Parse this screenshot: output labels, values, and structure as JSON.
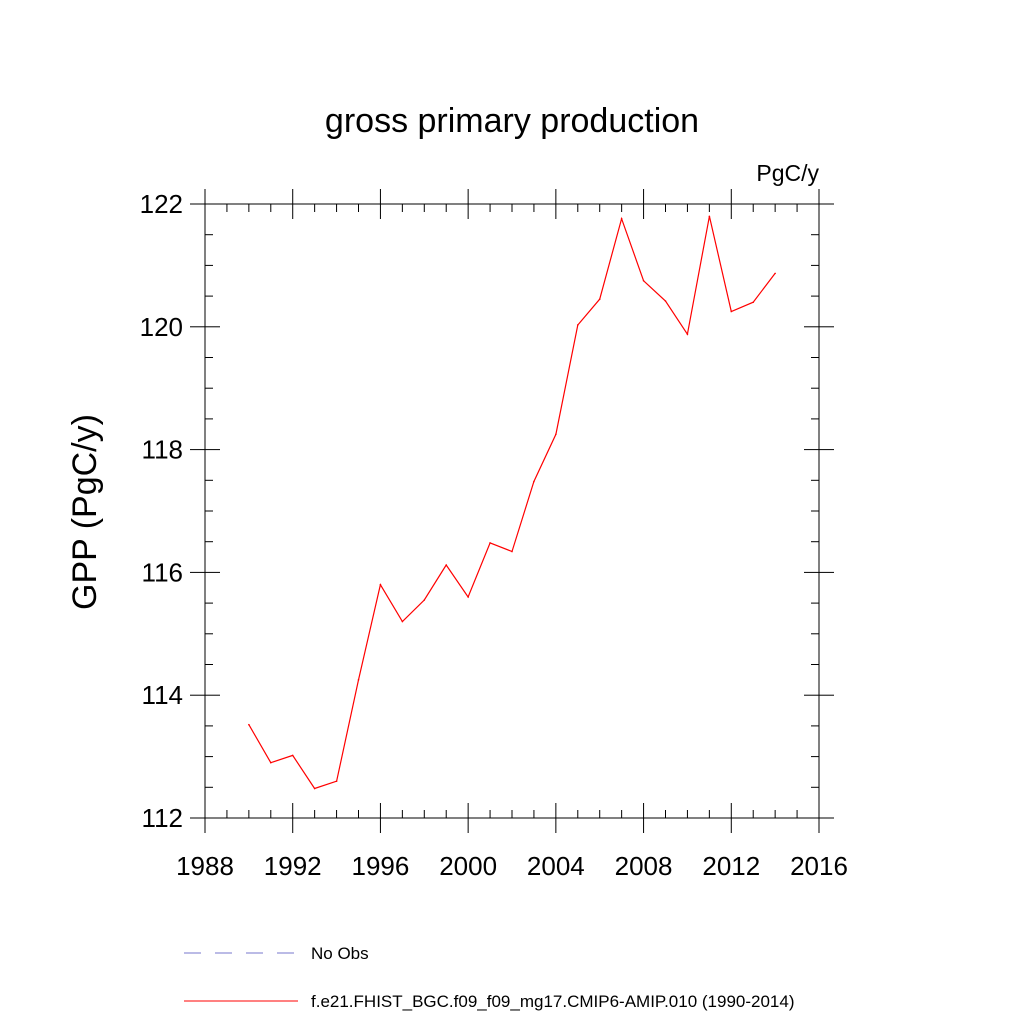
{
  "chart_data": {
    "type": "line",
    "title": "gross primary production",
    "units_label": "PgC/y",
    "xlabel": "",
    "ylabel": "GPP  (PgC/y)",
    "xlim": [
      1988,
      2016
    ],
    "ylim": [
      112,
      122
    ],
    "x_ticks": [
      1988,
      1992,
      1996,
      2000,
      2004,
      2008,
      2012,
      2016
    ],
    "y_ticks": [
      112,
      114,
      116,
      118,
      120,
      122
    ],
    "x_minor_step": 1,
    "y_minor_step": 0.5,
    "series": [
      {
        "name": "f.e21.FHIST_BGC.f09_f09_mg17.CMIP6-AMIP.010 (1990-2014)",
        "color": "#ff0000",
        "dash": "solid",
        "x": [
          1990,
          1991,
          1992,
          1993,
          1994,
          1995,
          1996,
          1997,
          1998,
          1999,
          2000,
          2001,
          2002,
          2003,
          2004,
          2005,
          2006,
          2007,
          2008,
          2009,
          2010,
          2011,
          2012,
          2013,
          2014
        ],
        "values": [
          113.52,
          112.9,
          113.02,
          112.48,
          112.6,
          114.25,
          115.8,
          115.2,
          115.55,
          116.12,
          115.6,
          116.48,
          116.34,
          117.48,
          118.25,
          120.03,
          120.45,
          121.76,
          120.75,
          120.42,
          119.88,
          121.8,
          120.25,
          120.4,
          120.87
        ]
      }
    ],
    "legend": [
      {
        "label": "No Obs",
        "color": "#7777cc",
        "dash": "dashed"
      },
      {
        "label": "f.e21.FHIST_BGC.f09_f09_mg17.CMIP6-AMIP.010 (1990-2014)",
        "color": "#ff0000",
        "dash": "solid"
      }
    ],
    "legend_position": "bottom-left",
    "grid": false
  }
}
